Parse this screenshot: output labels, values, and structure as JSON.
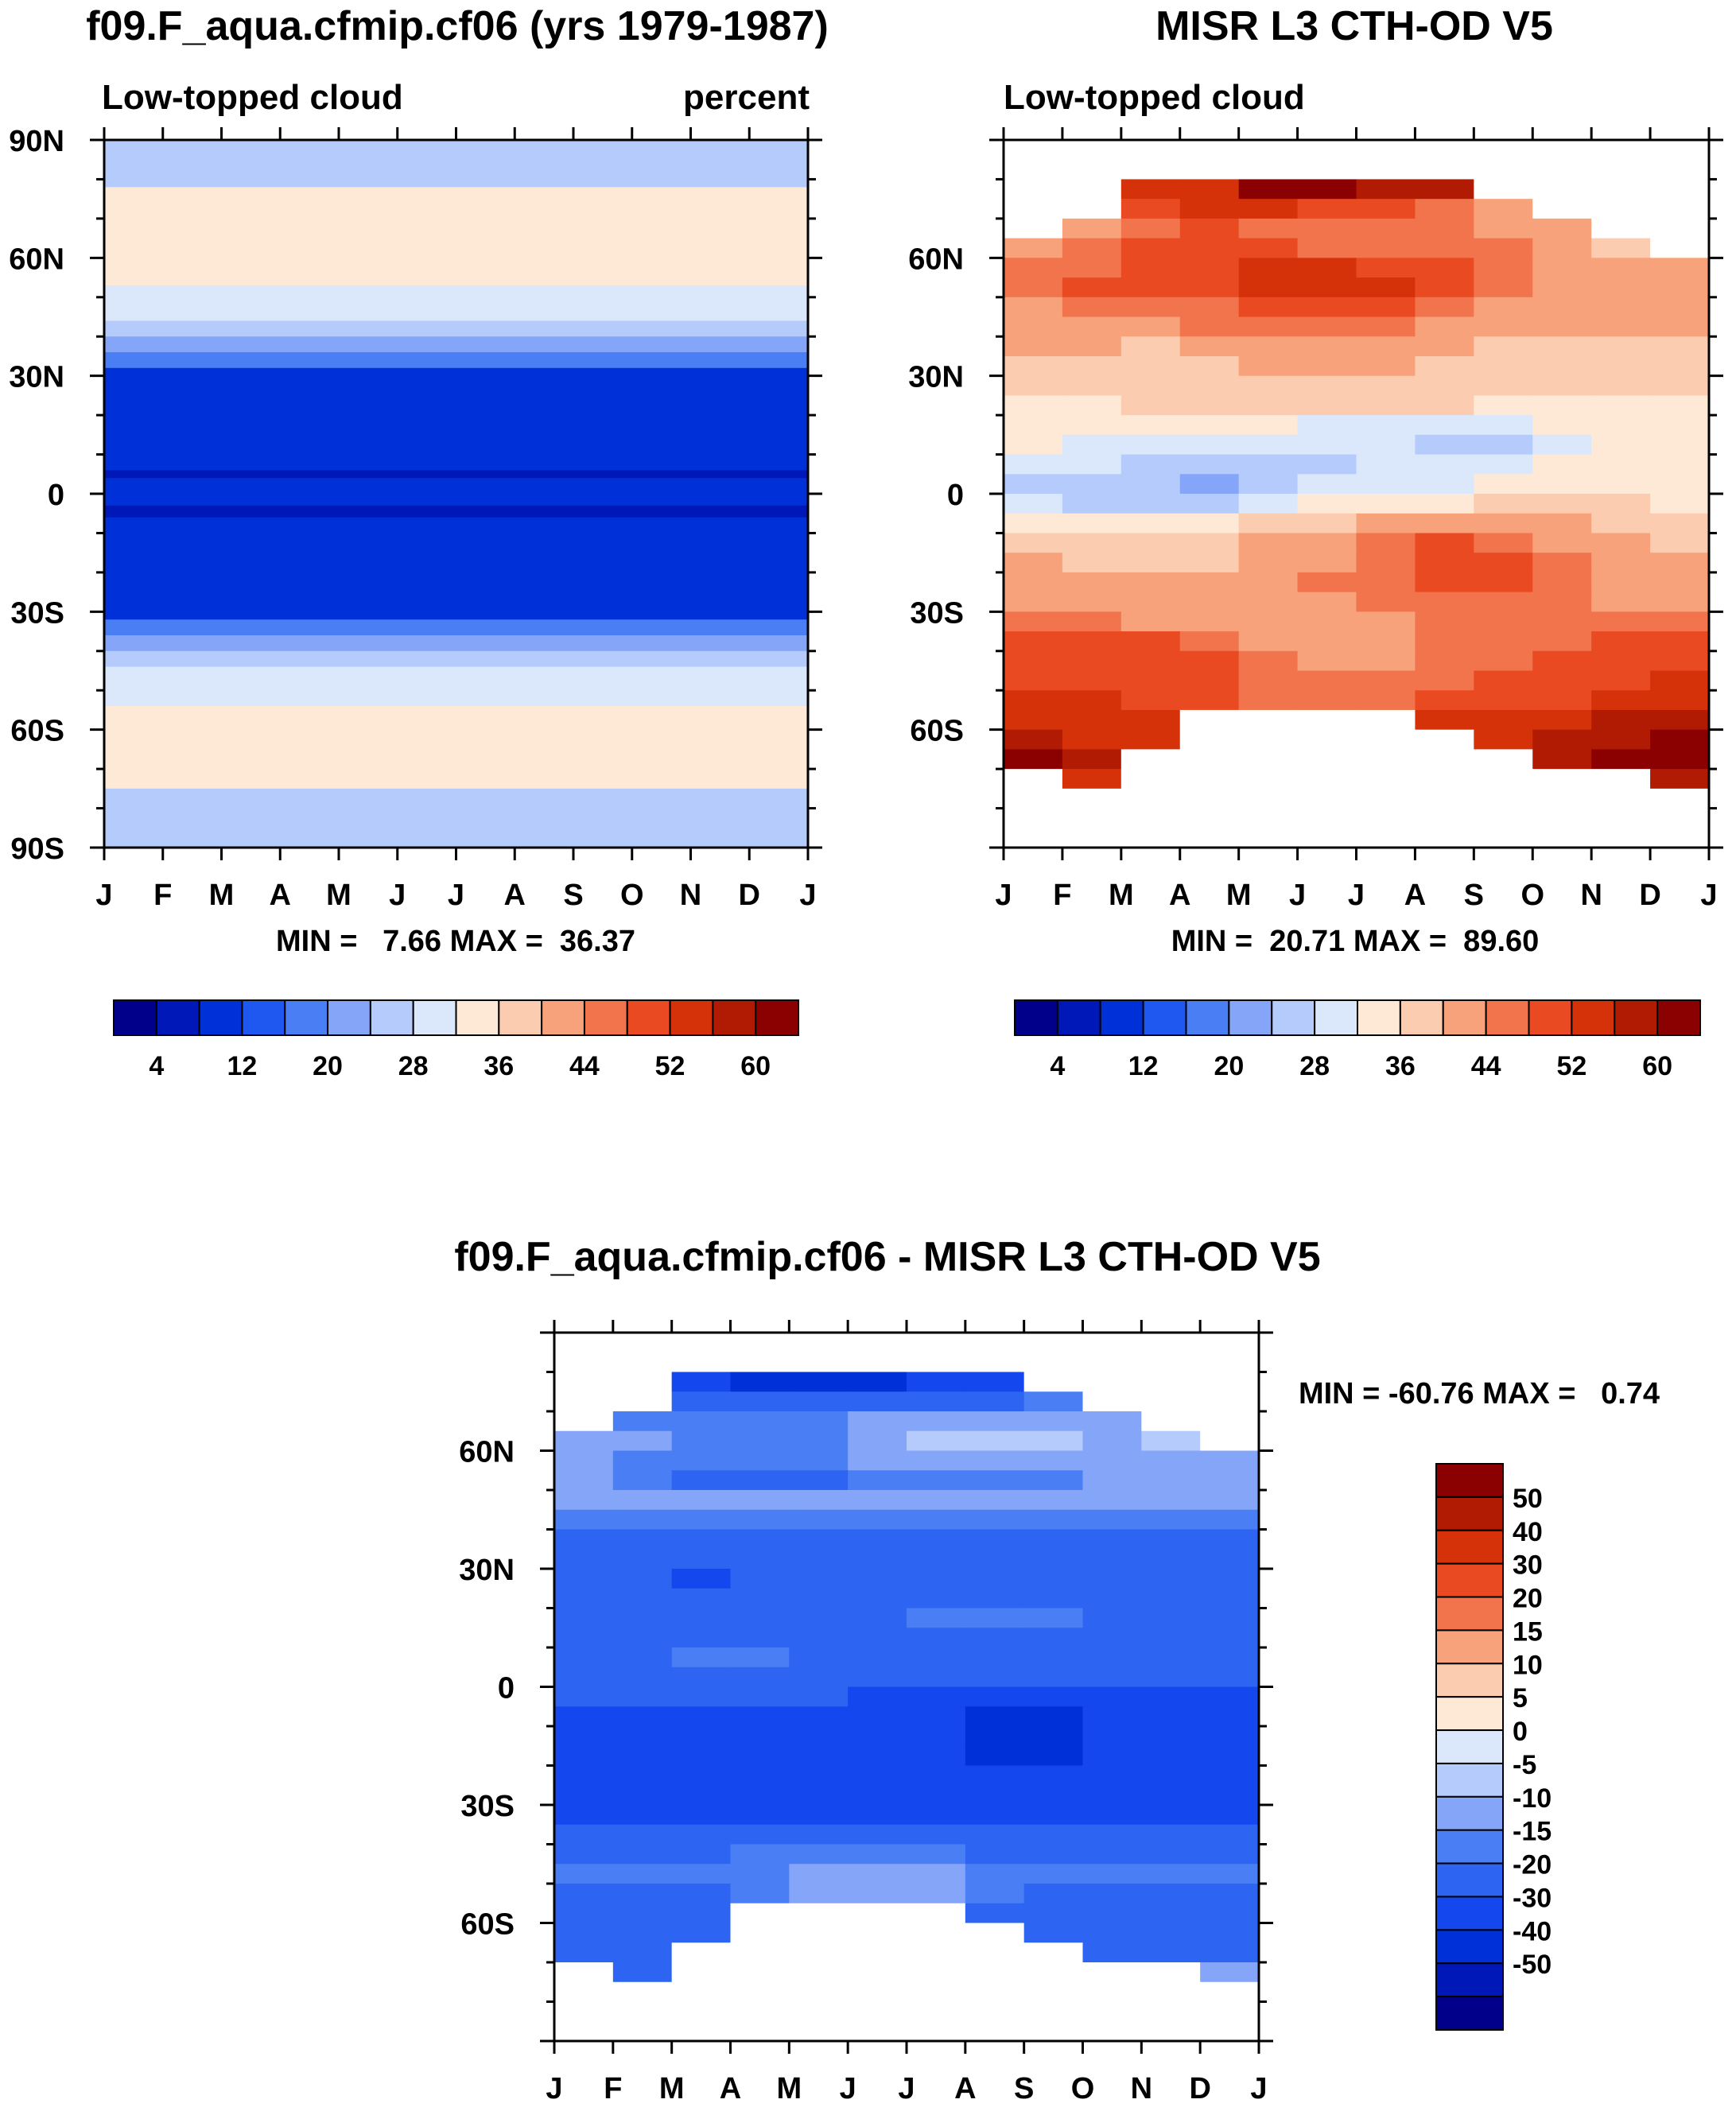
{
  "colors": {
    "seq_colorbar": [
      "#00008b",
      "#0018b8",
      "#0030d8",
      "#1e58f0",
      "#4a7ef5",
      "#85a6f8",
      "#b4cbfb",
      "#dbe8fc",
      "#fde9d6",
      "#fbccb0",
      "#f7a27b",
      "#f2744d",
      "#ea4a22",
      "#d6320a",
      "#b11a03",
      "#8b0000"
    ],
    "diff_colorbar": [
      "#00008b",
      "#0018b8",
      "#0030d8",
      "#1447ee",
      "#2d64f2",
      "#4a7ef5",
      "#85a6f8",
      "#b4cbfb",
      "#dbe8fc",
      "#fde9d6",
      "#fbccb0",
      "#f7a27b",
      "#f2744d",
      "#ea4a22",
      "#d6320a",
      "#b11a03",
      "#8b0000"
    ],
    "missing": "#ffffff"
  },
  "chart_data": [
    {
      "type": "heatmap",
      "title": "f09.F_aqua.cfmip.cf06 (yrs 1979-1987)",
      "subtitle_left": "Low-topped cloud",
      "subtitle_right": "percent",
      "stats": "MIN =   7.66 MAX =  36.37",
      "x_tick_labels": [
        "J",
        "F",
        "M",
        "A",
        "M",
        "J",
        "J",
        "A",
        "S",
        "O",
        "N",
        "D",
        "J"
      ],
      "y_tick_labels": [
        "90N",
        "60N",
        "30N",
        "0",
        "30S",
        "60S",
        "90S"
      ],
      "ylim": [
        -90,
        90
      ],
      "bands": [
        {
          "lat_min": 78,
          "lat_max": 90,
          "level": 6
        },
        {
          "lat_min": 53,
          "lat_max": 78,
          "level": 8
        },
        {
          "lat_min": 44,
          "lat_max": 53,
          "level": 7
        },
        {
          "lat_min": 40,
          "lat_max": 44,
          "level": 6
        },
        {
          "lat_min": 36,
          "lat_max": 40,
          "level": 5
        },
        {
          "lat_min": 32,
          "lat_max": 36,
          "level": 4
        },
        {
          "lat_min": 6,
          "lat_max": 32,
          "level": 2
        },
        {
          "lat_min": 4,
          "lat_max": 6,
          "level": 1
        },
        {
          "lat_min": -3,
          "lat_max": 4,
          "level": 2
        },
        {
          "lat_min": -6,
          "lat_max": -3,
          "level": 1
        },
        {
          "lat_min": -32,
          "lat_max": -6,
          "level": 2
        },
        {
          "lat_min": -36,
          "lat_max": -32,
          "level": 4
        },
        {
          "lat_min": -40,
          "lat_max": -36,
          "level": 5
        },
        {
          "lat_min": -44,
          "lat_max": -40,
          "level": 6
        },
        {
          "lat_min": -54,
          "lat_max": -44,
          "level": 7
        },
        {
          "lat_min": -75,
          "lat_max": -54,
          "level": 8
        },
        {
          "lat_min": -90,
          "lat_max": -75,
          "level": 6
        }
      ],
      "colorbar_labels": [
        "4",
        "12",
        "20",
        "28",
        "36",
        "44",
        "52",
        "60"
      ]
    },
    {
      "type": "heatmap",
      "title": "MISR L3 CTH-OD V5",
      "subtitle_left": "Low-topped cloud",
      "stats": "MIN =  20.71 MAX =  89.60",
      "x_tick_labels": [
        "J",
        "F",
        "M",
        "A",
        "M",
        "J",
        "J",
        "A",
        "S",
        "O",
        "N",
        "D",
        "J"
      ],
      "y_tick_labels": [
        "60N",
        "30N",
        "0",
        "30S",
        "60S"
      ],
      "ylim": [
        -90,
        90
      ],
      "months": [
        "J",
        "F",
        "M",
        "A",
        "M",
        "J",
        "J",
        "A",
        "S",
        "O",
        "N",
        "D"
      ],
      "lat_rows": [
        77.5,
        72.5,
        67.5,
        62.5,
        57.5,
        52.5,
        47.5,
        42.5,
        37.5,
        32.5,
        27.5,
        22.5,
        17.5,
        12.5,
        7.5,
        2.5,
        -2.5,
        -7.5,
        -12.5,
        -17.5,
        -22.5,
        -27.5,
        -32.5,
        -37.5,
        -42.5,
        -47.5,
        -52.5,
        -57.5,
        -62.5,
        -67.5,
        -72.5,
        -77.5
      ],
      "levels": [
        [
          -1,
          -1,
          13,
          13,
          15,
          15,
          14,
          14,
          -1,
          -1,
          -1,
          -1
        ],
        [
          -1,
          -1,
          12,
          13,
          13,
          12,
          12,
          11,
          10,
          -1,
          -1,
          -1
        ],
        [
          -1,
          10,
          11,
          12,
          11,
          11,
          11,
          11,
          10,
          10,
          -1,
          -1
        ],
        [
          10,
          11,
          12,
          12,
          12,
          11,
          11,
          11,
          11,
          10,
          9,
          -1
        ],
        [
          11,
          11,
          12,
          12,
          13,
          13,
          12,
          12,
          11,
          10,
          10,
          10
        ],
        [
          11,
          12,
          12,
          12,
          13,
          13,
          13,
          12,
          11,
          10,
          10,
          10
        ],
        [
          10,
          11,
          11,
          11,
          12,
          12,
          12,
          11,
          10,
          10,
          10,
          10
        ],
        [
          10,
          10,
          10,
          11,
          11,
          11,
          11,
          10,
          10,
          10,
          10,
          10
        ],
        [
          10,
          10,
          9,
          10,
          10,
          10,
          10,
          10,
          9,
          9,
          9,
          9
        ],
        [
          9,
          9,
          9,
          9,
          10,
          10,
          10,
          9,
          9,
          9,
          9,
          9
        ],
        [
          9,
          9,
          9,
          9,
          9,
          9,
          9,
          9,
          9,
          9,
          9,
          9
        ],
        [
          8,
          8,
          9,
          9,
          9,
          9,
          9,
          9,
          8,
          8,
          8,
          8
        ],
        [
          8,
          8,
          8,
          8,
          8,
          7,
          7,
          7,
          7,
          8,
          8,
          8
        ],
        [
          8,
          7,
          7,
          7,
          7,
          7,
          7,
          6,
          6,
          7,
          8,
          8
        ],
        [
          7,
          7,
          6,
          6,
          6,
          6,
          7,
          7,
          7,
          8,
          8,
          8
        ],
        [
          6,
          6,
          6,
          5,
          6,
          7,
          7,
          7,
          8,
          8,
          8,
          8
        ],
        [
          7,
          6,
          6,
          6,
          7,
          8,
          8,
          8,
          9,
          9,
          9,
          8
        ],
        [
          8,
          8,
          8,
          8,
          9,
          9,
          10,
          10,
          10,
          10,
          9,
          9
        ],
        [
          9,
          9,
          9,
          9,
          10,
          10,
          11,
          12,
          11,
          10,
          10,
          9
        ],
        [
          10,
          9,
          9,
          9,
          10,
          10,
          11,
          12,
          12,
          11,
          10,
          10
        ],
        [
          10,
          10,
          10,
          10,
          10,
          11,
          11,
          12,
          12,
          11,
          10,
          10
        ],
        [
          10,
          10,
          10,
          10,
          10,
          10,
          11,
          11,
          11,
          11,
          10,
          10
        ],
        [
          11,
          11,
          10,
          10,
          10,
          10,
          10,
          11,
          11,
          11,
          11,
          11
        ],
        [
          12,
          12,
          12,
          11,
          10,
          10,
          10,
          11,
          11,
          11,
          12,
          12
        ],
        [
          12,
          12,
          12,
          12,
          11,
          10,
          10,
          11,
          11,
          12,
          12,
          12
        ],
        [
          12,
          12,
          12,
          12,
          11,
          11,
          11,
          11,
          12,
          12,
          12,
          13
        ],
        [
          13,
          13,
          12,
          12,
          11,
          11,
          11,
          12,
          12,
          12,
          13,
          13
        ],
        [
          13,
          13,
          13,
          -1,
          -1,
          -1,
          -1,
          13,
          13,
          13,
          14,
          14
        ],
        [
          14,
          13,
          13,
          -1,
          -1,
          -1,
          -1,
          -1,
          13,
          14,
          14,
          15
        ],
        [
          15,
          14,
          -1,
          -1,
          -1,
          -1,
          -1,
          -1,
          -1,
          14,
          15,
          15
        ],
        [
          -1,
          13,
          -1,
          -1,
          -1,
          -1,
          -1,
          -1,
          -1,
          -1,
          -1,
          14
        ],
        [
          -1,
          -1,
          -1,
          -1,
          -1,
          -1,
          -1,
          -1,
          -1,
          -1,
          -1,
          -1
        ]
      ],
      "colorbar_labels": [
        "4",
        "12",
        "20",
        "28",
        "36",
        "44",
        "52",
        "60"
      ]
    },
    {
      "type": "heatmap",
      "title": "f09.F_aqua.cfmip.cf06 - MISR L3 CTH-OD V5",
      "stats": "MIN = -60.76 MAX =   0.74",
      "x_tick_labels": [
        "J",
        "F",
        "M",
        "A",
        "M",
        "J",
        "J",
        "A",
        "S",
        "O",
        "N",
        "D",
        "J"
      ],
      "y_tick_labels": [
        "60N",
        "30N",
        "0",
        "30S",
        "60S"
      ],
      "ylim": [
        -90,
        90
      ],
      "months": [
        "J",
        "F",
        "M",
        "A",
        "M",
        "J",
        "J",
        "A",
        "S",
        "O",
        "N",
        "D"
      ],
      "lat_rows": [
        77.5,
        72.5,
        67.5,
        62.5,
        57.5,
        52.5,
        47.5,
        42.5,
        37.5,
        32.5,
        27.5,
        22.5,
        17.5,
        12.5,
        7.5,
        2.5,
        -2.5,
        -7.5,
        -12.5,
        -17.5,
        -22.5,
        -27.5,
        -32.5,
        -37.5,
        -42.5,
        -47.5,
        -52.5,
        -57.5,
        -62.5,
        -67.5,
        -72.5,
        -77.5
      ],
      "levels": [
        [
          -1,
          -1,
          3,
          2,
          2,
          2,
          3,
          3,
          -1,
          -1,
          -1,
          -1
        ],
        [
          -1,
          -1,
          4,
          4,
          4,
          4,
          4,
          4,
          5,
          -1,
          -1,
          -1
        ],
        [
          -1,
          5,
          5,
          5,
          5,
          6,
          6,
          6,
          6,
          6,
          -1,
          -1
        ],
        [
          6,
          6,
          5,
          5,
          5,
          6,
          7,
          7,
          7,
          6,
          7,
          -1
        ],
        [
          6,
          5,
          5,
          5,
          5,
          6,
          6,
          6,
          6,
          6,
          6,
          6
        ],
        [
          6,
          5,
          4,
          4,
          4,
          5,
          5,
          5,
          5,
          6,
          6,
          6
        ],
        [
          6,
          6,
          6,
          6,
          6,
          6,
          6,
          6,
          6,
          6,
          6,
          6
        ],
        [
          5,
          5,
          5,
          5,
          5,
          5,
          5,
          5,
          5,
          5,
          5,
          5
        ],
        [
          4,
          4,
          4,
          4,
          4,
          4,
          4,
          4,
          4,
          4,
          4,
          4
        ],
        [
          4,
          4,
          4,
          4,
          4,
          4,
          4,
          4,
          4,
          4,
          4,
          4
        ],
        [
          4,
          4,
          3,
          4,
          4,
          4,
          4,
          4,
          4,
          4,
          4,
          4
        ],
        [
          4,
          4,
          4,
          4,
          4,
          4,
          4,
          4,
          4,
          4,
          4,
          4
        ],
        [
          4,
          4,
          4,
          4,
          4,
          4,
          5,
          5,
          5,
          4,
          4,
          4
        ],
        [
          4,
          4,
          4,
          4,
          4,
          4,
          4,
          4,
          4,
          4,
          4,
          4
        ],
        [
          4,
          4,
          5,
          5,
          4,
          4,
          4,
          4,
          4,
          4,
          4,
          4
        ],
        [
          4,
          4,
          4,
          4,
          4,
          4,
          4,
          4,
          4,
          4,
          4,
          4
        ],
        [
          4,
          4,
          4,
          4,
          4,
          3,
          3,
          3,
          3,
          3,
          3,
          3
        ],
        [
          3,
          3,
          3,
          3,
          3,
          3,
          3,
          2,
          2,
          3,
          3,
          3
        ],
        [
          3,
          3,
          3,
          3,
          3,
          3,
          3,
          2,
          2,
          3,
          3,
          3
        ],
        [
          3,
          3,
          3,
          3,
          3,
          3,
          3,
          2,
          2,
          3,
          3,
          3
        ],
        [
          3,
          3,
          3,
          3,
          3,
          3,
          3,
          3,
          3,
          3,
          3,
          3
        ],
        [
          3,
          3,
          3,
          3,
          3,
          3,
          3,
          3,
          3,
          3,
          3,
          3
        ],
        [
          3,
          3,
          3,
          3,
          3,
          3,
          3,
          3,
          3,
          3,
          3,
          3
        ],
        [
          4,
          4,
          4,
          4,
          4,
          4,
          4,
          4,
          4,
          4,
          4,
          4
        ],
        [
          4,
          4,
          4,
          5,
          5,
          5,
          5,
          4,
          4,
          4,
          4,
          4
        ],
        [
          5,
          5,
          5,
          5,
          6,
          6,
          6,
          5,
          5,
          5,
          5,
          5
        ],
        [
          4,
          4,
          4,
          5,
          6,
          6,
          6,
          5,
          4,
          4,
          4,
          4
        ],
        [
          4,
          4,
          4,
          -1,
          -1,
          -1,
          -1,
          4,
          4,
          4,
          4,
          4
        ],
        [
          4,
          4,
          4,
          -1,
          -1,
          -1,
          -1,
          -1,
          4,
          4,
          4,
          4
        ],
        [
          4,
          4,
          -1,
          -1,
          -1,
          -1,
          -1,
          -1,
          -1,
          4,
          4,
          4
        ],
        [
          -1,
          4,
          -1,
          -1,
          -1,
          -1,
          -1,
          -1,
          -1,
          -1,
          -1,
          6
        ],
        [
          -1,
          -1,
          -1,
          -1,
          -1,
          -1,
          -1,
          -1,
          -1,
          -1,
          -1,
          -1
        ]
      ],
      "colorbar_labels": [
        "50",
        "40",
        "30",
        "20",
        "15",
        "10",
        "5",
        "0",
        "-5",
        "-10",
        "-15",
        "-20",
        "-30",
        "-40",
        "-50"
      ]
    }
  ]
}
